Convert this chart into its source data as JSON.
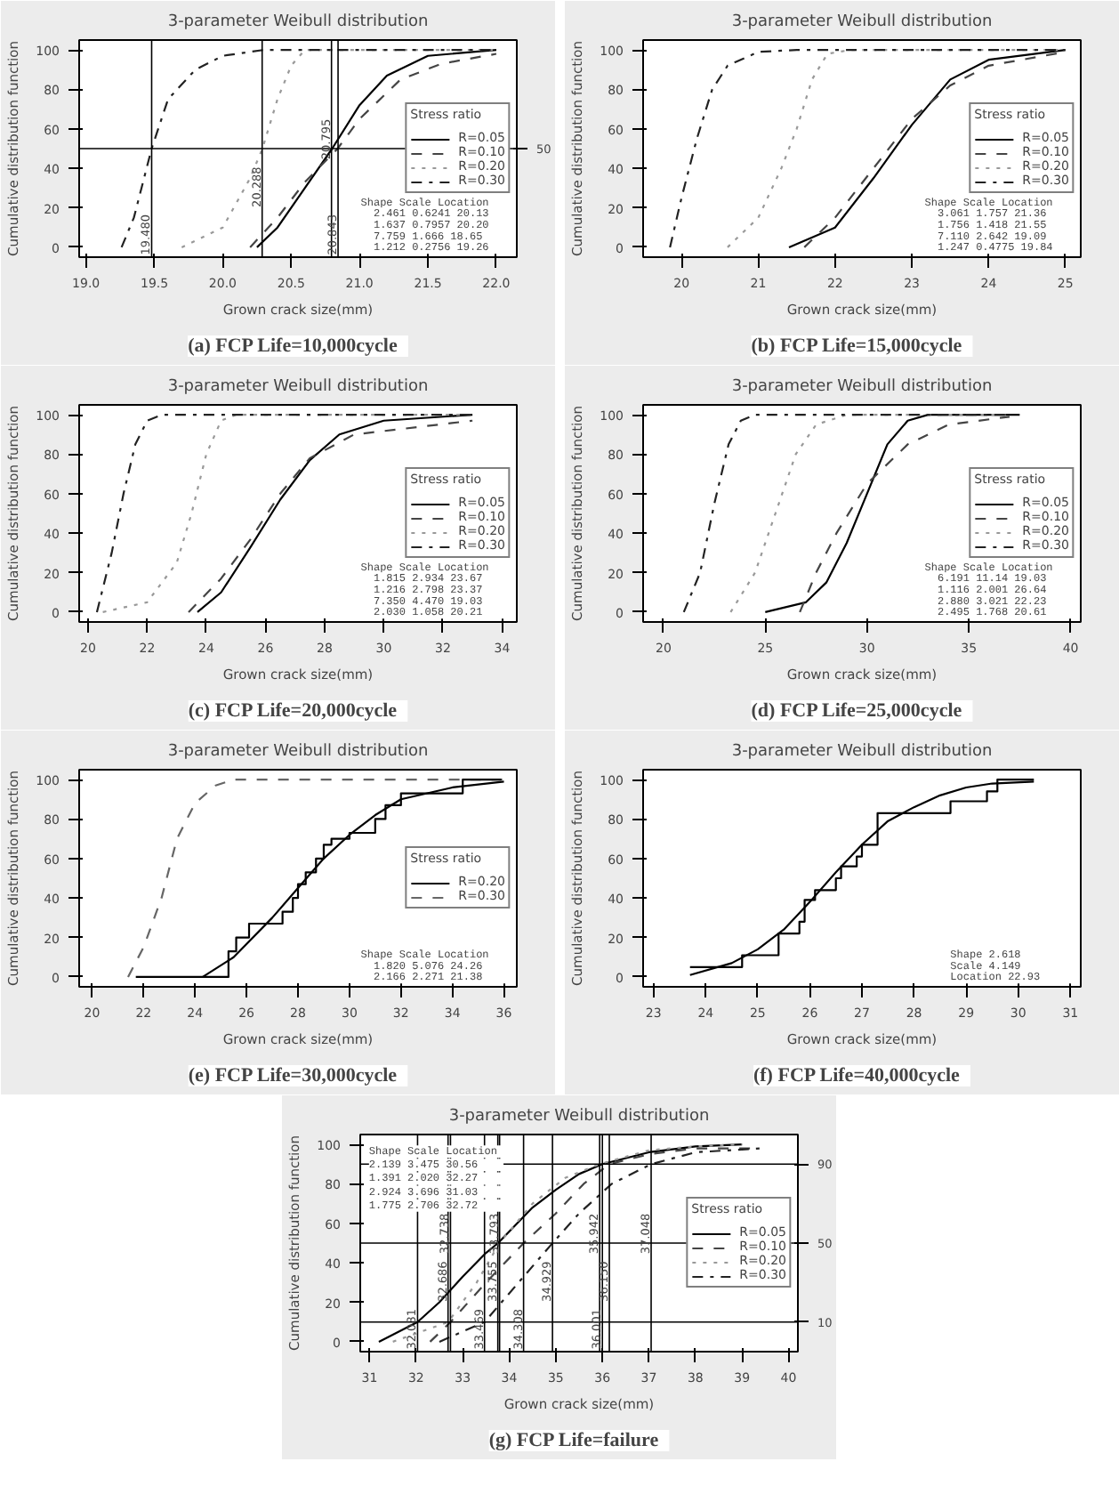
{
  "chart_data": [
    {
      "type": "line",
      "title": "3-parameter Weibull distribution",
      "subtitle": "(a)  FCP  Life=10,000cycle",
      "xlabel": "Grown crack size(mm)",
      "ylabel": "Cumulative distribution function",
      "legend_title": "Stress ratio",
      "legend": "right",
      "xlim": [
        18.95,
        22.15
      ],
      "xticks": [
        {
          "value": 19,
          "label": "19.0"
        },
        {
          "value": 19.5,
          "label": "19.5"
        },
        {
          "value": 20,
          "label": "20.0"
        },
        {
          "value": 20.5,
          "label": "20.5"
        },
        {
          "value": 21,
          "label": "21.0"
        },
        {
          "value": 21.5,
          "label": "21.5"
        },
        {
          "value": 22,
          "label": "22.0"
        }
      ],
      "ylim": [
        -5,
        105
      ],
      "yticks": [
        0,
        20,
        40,
        60,
        80,
        100
      ],
      "annotations": [
        "Shape   Scale  Location",
        "2.461  0.6241   20.13",
        "1.637  0.7957   20.20",
        "7.759   1.666   18.65",
        "1.212  0.2756   19.26"
      ],
      "ref_lines": [
        {
          "axis": "y",
          "value": 50,
          "label": "50"
        },
        {
          "axis": "x",
          "value": 19.48,
          "label": "19.480"
        },
        {
          "axis": "x",
          "value": 20.288,
          "label": "20.288"
        },
        {
          "axis": "x",
          "value": 20.795,
          "label": "20.795"
        },
        {
          "axis": "x",
          "value": 20.843,
          "label": "20.843"
        }
      ],
      "series": [
        {
          "name": "R=0.05",
          "color": "#000000",
          "line_style": "solid",
          "x": [
            20.25,
            20.4,
            20.6,
            20.8,
            21.0,
            21.2,
            21.5,
            22.0
          ],
          "values": [
            0,
            10,
            30,
            50,
            72,
            87,
            97,
            100
          ]
        },
        {
          "name": "R=0.10",
          "color": "#444444",
          "line_style": "dashed",
          "x": [
            20.2,
            20.4,
            20.6,
            20.84,
            21.0,
            21.3,
            21.6,
            22.0
          ],
          "values": [
            0,
            15,
            33,
            50,
            65,
            85,
            93,
            98
          ]
        },
        {
          "name": "R=0.20",
          "color": "#999999",
          "line_style": "dotted",
          "x": [
            19.7,
            20.0,
            20.2,
            20.29,
            20.4,
            20.5,
            20.6,
            22.0
          ],
          "values": [
            0,
            10,
            35,
            50,
            75,
            92,
            100,
            100
          ]
        },
        {
          "name": "R=0.30",
          "color": "#222222",
          "line_style": "dashdot",
          "x": [
            19.26,
            19.35,
            19.48,
            19.6,
            19.8,
            20.0,
            20.3,
            22.0
          ],
          "values": [
            0,
            15,
            50,
            75,
            90,
            97,
            100,
            100
          ]
        }
      ]
    },
    {
      "type": "line",
      "title": "3-parameter Weibull distribution",
      "subtitle": "(b)  FCP  Life=15,000cycle",
      "xlabel": "Grown crack size(mm)",
      "ylabel": "Cumulative distribution function",
      "legend_title": "Stress ratio",
      "legend": "right",
      "xlim": [
        19.5,
        25.2
      ],
      "xticks": [
        20,
        21,
        22,
        23,
        24,
        25
      ],
      "ylim": [
        -5,
        105
      ],
      "yticks": [
        0,
        20,
        40,
        60,
        80,
        100
      ],
      "annotations": [
        "Shape   Scale  Location",
        "3.061   1.757   21.36",
        "1.756   1.418   21.55",
        "7.110   2.642   19.09",
        "1.247  0.4775   19.84"
      ],
      "series": [
        {
          "name": "R=0.05",
          "color": "#000000",
          "line_style": "solid",
          "x": [
            21.4,
            22.0,
            22.5,
            23.0,
            23.5,
            24.0,
            25.0
          ],
          "values": [
            0,
            10,
            35,
            62,
            85,
            95,
            100
          ]
        },
        {
          "name": "R=0.10",
          "color": "#444444",
          "line_style": "dashed",
          "x": [
            21.6,
            22.0,
            22.5,
            23.0,
            23.5,
            24.0,
            25.0
          ],
          "values": [
            0,
            15,
            40,
            65,
            82,
            92,
            99
          ]
        },
        {
          "name": "R=0.20",
          "color": "#999999",
          "line_style": "dotted",
          "x": [
            20.6,
            21.0,
            21.3,
            21.5,
            21.7,
            21.9,
            22.2,
            25.0
          ],
          "values": [
            0,
            15,
            40,
            60,
            85,
            98,
            100,
            100
          ]
        },
        {
          "name": "R=0.30",
          "color": "#222222",
          "line_style": "dashdot",
          "x": [
            19.85,
            20.0,
            20.2,
            20.4,
            20.6,
            21.0,
            21.5,
            25.0
          ],
          "values": [
            0,
            25,
            55,
            80,
            92,
            99,
            100,
            100
          ]
        }
      ]
    },
    {
      "type": "line",
      "title": "3-parameter Weibull distribution",
      "subtitle": "(c)  FCP  Life=20,000cycle",
      "xlabel": "Grown crack size(mm)",
      "ylabel": "Cumulative distribution function",
      "legend_title": "Stress ratio",
      "legend": "right",
      "xlim": [
        19.7,
        34.5
      ],
      "xticks": [
        20,
        22,
        24,
        26,
        28,
        30,
        32,
        34
      ],
      "ylim": [
        -5,
        105
      ],
      "yticks": [
        0,
        20,
        40,
        60,
        80,
        100
      ],
      "annotations": [
        "Shape   Scale  Location",
        "1.815   2.934   23.67",
        "1.216   2.798   23.37",
        "7.350   4.470   19.03",
        "2.030   1.058   20.21"
      ],
      "series": [
        {
          "name": "R=0.05",
          "color": "#000000",
          "line_style": "solid",
          "x": [
            23.7,
            24.5,
            25.5,
            26.5,
            27.5,
            28.5,
            30.0,
            33.0
          ],
          "values": [
            0,
            10,
            33,
            57,
            77,
            90,
            97,
            100
          ]
        },
        {
          "name": "R=0.10",
          "color": "#444444",
          "line_style": "dashed",
          "x": [
            23.4,
            24.5,
            25.5,
            26.5,
            27.5,
            29.0,
            33.0
          ],
          "values": [
            0,
            17,
            37,
            60,
            78,
            90,
            97
          ]
        },
        {
          "name": "R=0.20",
          "color": "#999999",
          "line_style": "dotted",
          "x": [
            20.5,
            22.0,
            23.0,
            23.5,
            24.0,
            24.5,
            25.0,
            33.0
          ],
          "values": [
            0,
            5,
            25,
            50,
            80,
            97,
            100,
            100
          ]
        },
        {
          "name": "R=0.30",
          "color": "#222222",
          "line_style": "dashdot",
          "x": [
            20.3,
            20.8,
            21.2,
            21.6,
            22.0,
            22.5,
            33.0
          ],
          "values": [
            0,
            30,
            60,
            85,
            97,
            100,
            100
          ]
        }
      ]
    },
    {
      "type": "line",
      "title": "3-parameter Weibull distribution",
      "subtitle": "(d)  FCP  Life=25,000cycle",
      "xlabel": "Grown crack size(mm)",
      "ylabel": "Cumulative distribution function",
      "legend_title": "Stress ratio",
      "legend": "right",
      "xlim": [
        19,
        40.5
      ],
      "xticks": [
        20,
        25,
        30,
        35,
        40
      ],
      "ylim": [
        -5,
        105
      ],
      "yticks": [
        0,
        20,
        40,
        60,
        80,
        100
      ],
      "annotations": [
        "Shape   Scale  Location",
        "6.191   11.14   19.03",
        "1.116   2.001   26.64",
        "2.880   3.021   22.23",
        "2.495   1.768   20.61"
      ],
      "series": [
        {
          "name": "R=0.05",
          "color": "#000000",
          "line_style": "solid",
          "x": [
            25,
            27,
            28,
            29,
            30,
            31,
            32,
            33,
            37.5
          ],
          "values": [
            0,
            5,
            15,
            35,
            60,
            85,
            97,
            100,
            100
          ]
        },
        {
          "name": "R=0.10",
          "color": "#444444",
          "line_style": "dashed",
          "x": [
            26.7,
            27.5,
            28.5,
            30,
            32,
            34,
            37
          ],
          "values": [
            0,
            20,
            40,
            65,
            85,
            95,
            99
          ]
        },
        {
          "name": "R=0.20",
          "color": "#999999",
          "line_style": "dotted",
          "x": [
            23.3,
            24.5,
            25.5,
            26.5,
            27.5,
            29,
            37
          ],
          "values": [
            0,
            20,
            50,
            80,
            95,
            100,
            100
          ]
        },
        {
          "name": "R=0.30",
          "color": "#222222",
          "line_style": "dashdot",
          "x": [
            21,
            21.8,
            22.5,
            23.2,
            23.8,
            24.5,
            37
          ],
          "values": [
            0,
            20,
            55,
            85,
            97,
            100,
            100
          ]
        }
      ]
    },
    {
      "type": "line",
      "title": "3-parameter Weibull distribution",
      "subtitle": "(e)  FCP  Life=30,000cycle",
      "xlabel": "Grown crack size(mm)",
      "ylabel": "Cumulative distribution function",
      "legend_title": "Stress ratio",
      "legend": "right",
      "xlim": [
        19.5,
        36.5
      ],
      "xticks": [
        20,
        22,
        24,
        26,
        28,
        30,
        32,
        34,
        36
      ],
      "ylim": [
        -5,
        105
      ],
      "yticks": [
        0,
        20,
        40,
        60,
        80,
        100
      ],
      "annotations": [
        "Shape   Scale  Location",
        "1.820   5.076   24.26",
        "2.166   2.271   21.38"
      ],
      "series": [
        {
          "name": "R=0.20",
          "color": "#000000",
          "line_style": "solid",
          "x": [
            24.3,
            25.5,
            27,
            28,
            29,
            30,
            31,
            32,
            34,
            36
          ],
          "values": [
            0,
            10,
            30,
            45,
            60,
            72,
            82,
            90,
            96,
            99
          ]
        },
        {
          "name": "R=0.30",
          "color": "#666666",
          "line_style": "dashed",
          "x": [
            21.4,
            22,
            22.7,
            23.3,
            24,
            24.8,
            25.5,
            36
          ],
          "values": [
            0,
            15,
            40,
            70,
            88,
            97,
            100,
            100
          ]
        },
        {
          "type": "step",
          "color": "#000000",
          "line_style": "solid",
          "x": [
            21.7,
            25.3,
            25.6,
            26.1,
            27.4,
            27.8,
            28.0,
            28.3,
            28.7,
            29.0,
            29.3,
            30.0,
            31.0,
            31.4,
            32.0,
            34.4,
            35.9
          ],
          "values": [
            0,
            13,
            20,
            27,
            33,
            40,
            47,
            53,
            60,
            67,
            70,
            73,
            80,
            87,
            93,
            100,
            100
          ]
        }
      ]
    },
    {
      "type": "line",
      "title": "3-parameter Weibull distribution",
      "subtitle": "(f)  FCP  Life=40,000cycle",
      "xlabel": "Grown crack size(mm)",
      "ylabel": "Cumulative distribution function",
      "xlim": [
        22.8,
        31.2
      ],
      "xticks": [
        23,
        24,
        25,
        26,
        27,
        28,
        29,
        30,
        31
      ],
      "ylim": [
        -5,
        105
      ],
      "yticks": [
        0,
        20,
        40,
        60,
        80,
        100
      ],
      "annotations": [
        "Shape         2.618",
        "Scale         4.149",
        "Location      22.93"
      ],
      "series": [
        {
          "color": "#000000",
          "line_style": "solid",
          "x": [
            23.7,
            24.5,
            25,
            25.5,
            26,
            26.5,
            27,
            27.5,
            28,
            28.5,
            29,
            29.5,
            30.3
          ],
          "values": [
            1,
            7,
            14,
            24,
            38,
            53,
            67,
            79,
            86,
            92,
            96,
            98,
            99
          ]
        },
        {
          "type": "step",
          "color": "#000000",
          "line_style": "solid",
          "x": [
            23.7,
            24.7,
            25.4,
            25.8,
            25.9,
            26.1,
            26.5,
            26.6,
            26.9,
            27.0,
            27.3,
            28.7,
            29.4,
            29.6,
            30.3
          ],
          "values": [
            5,
            11,
            22,
            28,
            39,
            44,
            50,
            56,
            61,
            67,
            83,
            89,
            94,
            100,
            100
          ]
        }
      ]
    },
    {
      "type": "line",
      "title": "3-parameter Weibull distribution",
      "subtitle": "(g)  FCP  Life=failure",
      "xlabel": "Grown crack size(mm)",
      "ylabel": "Cumulative distribution function",
      "legend_title": "Stress ratio",
      "legend": "right",
      "xlim": [
        30.8,
        40.2
      ],
      "xticks": [
        31,
        32,
        33,
        34,
        35,
        36,
        37,
        38,
        39,
        40
      ],
      "ylim": [
        -5,
        105
      ],
      "yticks": [
        0,
        20,
        40,
        60,
        80,
        100
      ],
      "annotations": [
        "Shape   Scale  Location",
        "2.139   3.475   30.56",
        "1.391   2.020   32.27",
        "2.924   3.696   31.03",
        "1.775   2.706   32.72"
      ],
      "ref_lines": [
        {
          "axis": "y",
          "value": 10,
          "label": "10"
        },
        {
          "axis": "y",
          "value": 50,
          "label": "50"
        },
        {
          "axis": "y",
          "value": 90,
          "label": "90"
        },
        {
          "axis": "x",
          "value": 32.031,
          "label": "32.031"
        },
        {
          "axis": "x",
          "value": 32.686,
          "label": "32.686"
        },
        {
          "axis": "x",
          "value": 32.738,
          "label": "32.738"
        },
        {
          "axis": "x",
          "value": 33.469,
          "label": "33.469"
        },
        {
          "axis": "x",
          "value": 33.755,
          "label": "33.755"
        },
        {
          "axis": "x",
          "value": 33.793,
          "label": "33.793"
        },
        {
          "axis": "x",
          "value": 34.308,
          "label": "34.308"
        },
        {
          "axis": "x",
          "value": 34.929,
          "label": "34.929"
        },
        {
          "axis": "x",
          "value": 35.942,
          "label": "35.942"
        },
        {
          "axis": "x",
          "value": 36.001,
          "label": "36.001"
        },
        {
          "axis": "x",
          "value": 36.15,
          "label": "36.150"
        },
        {
          "axis": "x",
          "value": 37.048,
          "label": "37.048"
        }
      ],
      "series": [
        {
          "name": "R=0.05",
          "color": "#000000",
          "line_style": "solid",
          "x": [
            31.2,
            32.03,
            32.5,
            33,
            33.5,
            33.76,
            34.5,
            35,
            35.5,
            36,
            37,
            38,
            39
          ],
          "values": [
            0,
            10,
            20,
            33,
            45,
            50,
            68,
            77,
            85,
            90,
            96,
            99,
            100
          ]
        },
        {
          "name": "R=0.10",
          "color": "#444444",
          "line_style": "dashed",
          "x": [
            32.3,
            32.74,
            33.5,
            34.31,
            35,
            35.6,
            36.15,
            37,
            38,
            39.4
          ],
          "values": [
            0,
            10,
            30,
            50,
            65,
            80,
            90,
            95,
            98,
            98
          ]
        },
        {
          "name": "R=0.20",
          "color": "#999999",
          "line_style": "dotted",
          "x": [
            31.5,
            32.69,
            33.3,
            33.79,
            34.5,
            35.2,
            35.94,
            37,
            38,
            39
          ],
          "values": [
            0,
            10,
            30,
            50,
            70,
            83,
            90,
            97,
            99,
            100
          ]
        },
        {
          "name": "R=0.30",
          "color": "#222222",
          "line_style": "dashdot",
          "x": [
            32.5,
            33.47,
            34.2,
            34.93,
            35.5,
            36.2,
            37.05,
            38,
            39.4
          ],
          "values": [
            0,
            10,
            30,
            50,
            65,
            80,
            90,
            96,
            98
          ]
        }
      ]
    }
  ]
}
